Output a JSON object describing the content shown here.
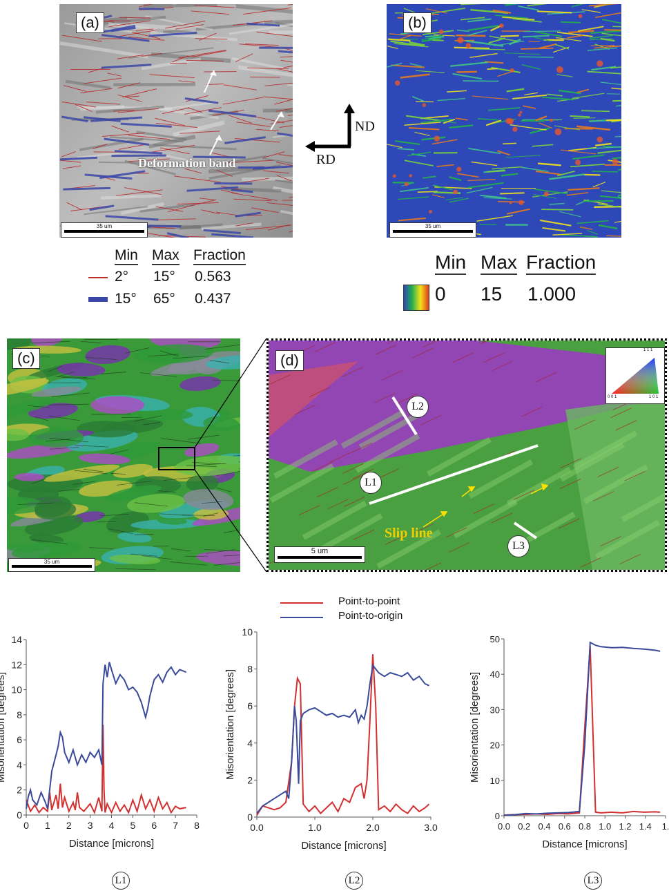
{
  "panel_a": {
    "label": "(a)",
    "annotation": "Deformation band",
    "scale": "35 um",
    "legend": {
      "headers": [
        "Min",
        "Max",
        "Fraction"
      ],
      "rows": [
        {
          "min": "2°",
          "max": "15°",
          "fraction": "0.563",
          "color": "#c0302a"
        },
        {
          "min": "15°",
          "max": "65°",
          "fraction": "0.437",
          "color": "#3b47a8"
        }
      ]
    }
  },
  "axes_indicator": {
    "vertical": "ND",
    "horizontal": "RD"
  },
  "panel_b": {
    "label": "(b)",
    "scale": "35 um",
    "legend": {
      "headers": [
        "Min",
        "Max",
        "Fraction"
      ],
      "min": "0",
      "max": "15",
      "fraction": "1.000"
    }
  },
  "panel_c": {
    "label": "(c)",
    "scale": "35 um"
  },
  "panel_d": {
    "label": "(d)",
    "scale": "5 um",
    "lines": [
      "L1",
      "L2",
      "L3"
    ],
    "annotation": "Slip line",
    "ipf": {
      "top": "1 1 1",
      "left": "0 0 1",
      "right": "1 0 1"
    }
  },
  "plot_legend": {
    "series": [
      "Point-to-point",
      "Point-to-origin"
    ],
    "colors": [
      "#d23030",
      "#3a4a9a"
    ]
  },
  "chart_data": [
    {
      "type": "line",
      "name": "L1",
      "xlabel": "Distance [microns]",
      "ylabel": "Misorientation [degrees]",
      "xlim": [
        0,
        8
      ],
      "ylim": [
        0,
        14
      ],
      "xticks": [
        "0",
        "1",
        "2",
        "3",
        "4",
        "5",
        "6",
        "7",
        "8"
      ],
      "yticks": [
        "0",
        "2",
        "4",
        "6",
        "8",
        "10",
        "12",
        "14"
      ],
      "series": [
        {
          "name": "Point-to-point",
          "x": [
            0,
            0.2,
            0.4,
            0.6,
            0.8,
            1.0,
            1.1,
            1.2,
            1.4,
            1.5,
            1.6,
            1.7,
            1.8,
            2.0,
            2.2,
            2.3,
            2.4,
            2.5,
            2.7,
            3.0,
            3.2,
            3.4,
            3.55,
            3.6,
            3.65,
            3.7,
            3.8,
            4.0,
            4.2,
            4.4,
            4.6,
            4.8,
            5.0,
            5.2,
            5.4,
            5.6,
            5.8,
            6.0,
            6.2,
            6.4,
            6.6,
            6.8,
            7.0,
            7.2,
            7.5
          ],
          "values": [
            1.2,
            0.3,
            0.8,
            0.2,
            0.6,
            0.3,
            1.8,
            0.4,
            1.6,
            0.5,
            2.5,
            0.6,
            1.4,
            0.3,
            1.0,
            0.4,
            1.8,
            0.6,
            0.3,
            0.9,
            0.2,
            1.4,
            0.3,
            7.2,
            2.0,
            0.2,
            0.9,
            0.2,
            1.0,
            0.3,
            0.8,
            0.2,
            1.2,
            0.3,
            1.6,
            0.5,
            1.2,
            0.3,
            1.4,
            0.5,
            1.0,
            0.2,
            0.7,
            0.5,
            0.6
          ]
        },
        {
          "name": "Point-to-origin",
          "x": [
            0,
            0.1,
            0.2,
            0.3,
            0.5,
            0.7,
            0.9,
            1.0,
            1.2,
            1.4,
            1.5,
            1.6,
            1.7,
            1.8,
            2.0,
            2.2,
            2.4,
            2.6,
            2.8,
            3.0,
            3.2,
            3.4,
            3.55,
            3.6,
            3.7,
            3.8,
            3.9,
            4.0,
            4.2,
            4.4,
            4.6,
            4.8,
            5.0,
            5.2,
            5.4,
            5.6,
            5.7,
            5.8,
            6.0,
            6.2,
            6.4,
            6.6,
            6.8,
            7.0,
            7.2,
            7.5
          ],
          "values": [
            0.5,
            1.5,
            2.0,
            1.2,
            0.8,
            1.8,
            1.0,
            0.5,
            3.5,
            4.8,
            5.5,
            6.6,
            6.2,
            5.0,
            4.2,
            5.2,
            4.0,
            4.8,
            4.2,
            5.0,
            4.6,
            5.2,
            4.0,
            10.5,
            12.0,
            11.0,
            12.2,
            11.6,
            10.5,
            11.2,
            10.8,
            10.0,
            10.2,
            9.8,
            9.0,
            7.8,
            8.5,
            9.5,
            10.8,
            11.2,
            10.6,
            11.4,
            11.8,
            11.2,
            11.6,
            11.4
          ]
        }
      ]
    },
    {
      "type": "line",
      "name": "L2",
      "xlabel": "Distance [microns]",
      "ylabel": "Misorientation [degrees]",
      "xlim": [
        0,
        3
      ],
      "ylim": [
        0,
        10
      ],
      "xticks": [
        "0.0",
        "1.0",
        "2.0",
        "3.0"
      ],
      "yticks": [
        "0",
        "2",
        "4",
        "6",
        "8",
        "10"
      ],
      "series": [
        {
          "name": "Point-to-point",
          "x": [
            0,
            0.1,
            0.2,
            0.3,
            0.4,
            0.5,
            0.6,
            0.65,
            0.7,
            0.75,
            0.8,
            0.9,
            1.0,
            1.1,
            1.2,
            1.3,
            1.4,
            1.5,
            1.6,
            1.7,
            1.8,
            1.85,
            1.9,
            1.95,
            2.0,
            2.05,
            2.1,
            2.2,
            2.3,
            2.4,
            2.5,
            2.6,
            2.7,
            2.8,
            2.9,
            2.97
          ],
          "values": [
            0.1,
            0.6,
            0.5,
            0.4,
            0.5,
            0.8,
            3.0,
            6.0,
            7.5,
            7.2,
            0.7,
            0.3,
            0.6,
            0.2,
            0.5,
            0.8,
            0.3,
            1.0,
            0.8,
            1.6,
            1.8,
            1.0,
            2.0,
            5.2,
            8.8,
            6.0,
            0.4,
            0.6,
            0.3,
            0.7,
            0.4,
            0.2,
            0.6,
            0.3,
            0.5,
            0.7
          ]
        },
        {
          "name": "Point-to-origin",
          "x": [
            0,
            0.1,
            0.2,
            0.3,
            0.4,
            0.5,
            0.55,
            0.6,
            0.65,
            0.68,
            0.72,
            0.75,
            0.8,
            0.9,
            1.0,
            1.1,
            1.2,
            1.3,
            1.4,
            1.5,
            1.6,
            1.7,
            1.75,
            1.8,
            1.85,
            1.9,
            1.95,
            2.0,
            2.05,
            2.1,
            2.2,
            2.3,
            2.4,
            2.5,
            2.6,
            2.7,
            2.8,
            2.9,
            2.97
          ],
          "values": [
            0.2,
            0.6,
            0.8,
            1.0,
            1.2,
            1.4,
            1.0,
            3.0,
            6.0,
            5.2,
            1.8,
            5.2,
            5.6,
            5.8,
            5.9,
            5.7,
            5.5,
            5.6,
            5.4,
            5.5,
            5.4,
            5.8,
            5.1,
            5.5,
            5.3,
            6.0,
            7.2,
            8.2,
            8.0,
            7.8,
            7.6,
            7.8,
            7.7,
            7.6,
            7.8,
            7.4,
            7.6,
            7.2,
            7.1
          ]
        }
      ]
    },
    {
      "type": "line",
      "name": "L3",
      "xlabel": "Distance [microns]",
      "ylabel": "Misorientation [degrees]",
      "xlim": [
        0,
        1.5
      ],
      "ylim": [
        0,
        50
      ],
      "xticks": [
        "0.0",
        "0.2",
        "0.4",
        "0.6",
        "0.8",
        "1.0",
        "1.2",
        "1.4",
        "1."
      ],
      "yticks": [
        "0",
        "10",
        "20",
        "30",
        "40",
        "50"
      ],
      "series": [
        {
          "name": "Point-to-point",
          "x": [
            0,
            0.1,
            0.2,
            0.3,
            0.4,
            0.5,
            0.6,
            0.7,
            0.75,
            0.8,
            0.85,
            0.9,
            1.0,
            1.1,
            1.2,
            1.3,
            1.4,
            1.45
          ],
          "values": [
            0.2,
            0.3,
            0.4,
            0.5,
            0.4,
            0.6,
            0.5,
            0.8,
            25,
            48,
            1.0,
            0.8,
            1.0,
            0.8,
            1.2,
            1.0,
            1.1,
            1.0
          ]
        },
        {
          "name": "Point-to-origin",
          "x": [
            0,
            0.1,
            0.2,
            0.3,
            0.4,
            0.5,
            0.6,
            0.7,
            0.75,
            0.8,
            0.85,
            0.9,
            1.0,
            1.1,
            1.2,
            1.3,
            1.4,
            1.45
          ],
          "values": [
            0.1,
            0.3,
            0.6,
            0.5,
            0.7,
            0.8,
            0.9,
            1.2,
            20,
            49,
            48.2,
            47.8,
            47.5,
            47.6,
            47.3,
            47.1,
            46.8,
            46.5
          ]
        }
      ]
    }
  ],
  "plot_labels": [
    "L1",
    "L2",
    "L3"
  ]
}
